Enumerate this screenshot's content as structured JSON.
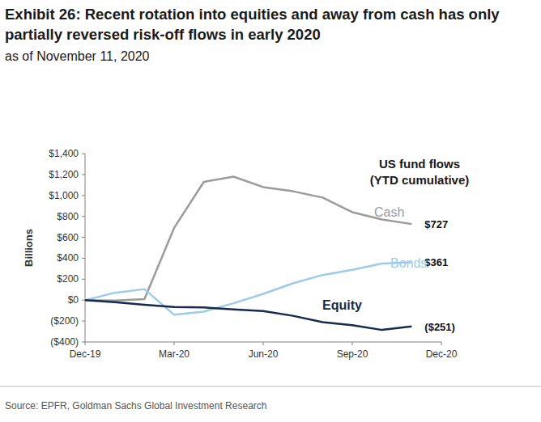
{
  "chart_data": {
    "type": "line",
    "title": "Exhibit 26: Recent rotation into equities and away from cash has only partially reversed risk-off flows in early 2020",
    "subtitle": "as of November 11, 2020",
    "annotation": [
      "US fund flows",
      "(YTD cumulative)"
    ],
    "y_label": "Billions",
    "source": "Source: EPFR, Goldman Sachs Global Investment Research",
    "categories": [
      "Dec-19",
      null,
      null,
      "Mar-20",
      null,
      null,
      "Jun-20",
      null,
      null,
      "Sep-20",
      null,
      null,
      "Dec-20"
    ],
    "series": [
      {
        "name": "Cash",
        "color": "#9b9b9b",
        "values": [
          0,
          -5,
          10,
          690,
          1130,
          1180,
          1080,
          1040,
          980,
          840,
          770,
          727,
          null
        ],
        "value_labels": [
          null,
          null,
          null,
          null,
          null,
          null,
          null,
          null,
          null,
          null,
          null,
          "$727",
          null
        ]
      },
      {
        "name": "Bonds",
        "color": "#9dcbe9",
        "values": [
          0,
          70,
          105,
          -140,
          -110,
          -30,
          60,
          160,
          240,
          290,
          350,
          361,
          null
        ],
        "value_labels": [
          null,
          null,
          null,
          null,
          null,
          null,
          null,
          null,
          null,
          null,
          null,
          "$361",
          null
        ]
      },
      {
        "name": "Equity",
        "color": "#152a4c",
        "values": [
          0,
          -20,
          -45,
          -65,
          -70,
          -90,
          -105,
          -150,
          -210,
          -240,
          -285,
          -251,
          null
        ],
        "value_labels": [
          null,
          null,
          null,
          null,
          null,
          null,
          null,
          null,
          null,
          null,
          null,
          "($251)",
          null
        ]
      }
    ],
    "ylim": [
      -400,
      1400
    ],
    "yticks": [
      {
        "value": -400,
        "label": "($400)"
      },
      {
        "value": -200,
        "label": "($200)"
      },
      {
        "value": 0,
        "label": "$0"
      },
      {
        "value": 200,
        "label": "$200"
      },
      {
        "value": 400,
        "label": "$400"
      },
      {
        "value": 600,
        "label": "$600"
      },
      {
        "value": 800,
        "label": "$800"
      },
      {
        "value": 1000,
        "label": "$1,000"
      },
      {
        "value": 1200,
        "label": "$1,200"
      },
      {
        "value": 1400,
        "label": "$1,400"
      }
    ],
    "grid": false
  }
}
